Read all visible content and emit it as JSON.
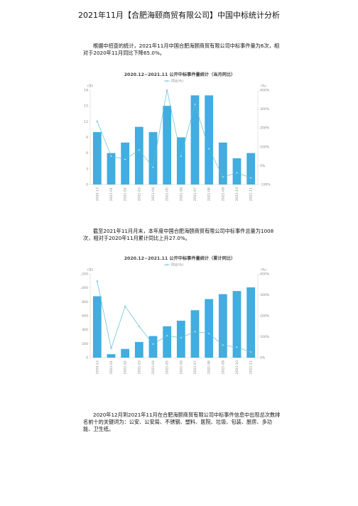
{
  "title": "2021年11月【合肥海颐商贸有限公司】中国中标统计分析",
  "paragraphs": [
    "根据中招查的统计，2021年11月中国合肥海颐商贸有限公司中标事件量为6次，相对于2020年11月同比下降65.0%。",
    "截至2021年11月月末，本年度中国合肥海颐商贸有限公司中标事件总量为1008次，相对于2020年11月累计同比上升27.0%。",
    "2020年12月到2021年11月在合肥海颐商贸有限公司中标事件信息中出现总次数排名前十的关键词为：公安、公安局、不锈钢、塑料、医院、垃圾、包装、厨房、多功能、卫生纸。"
  ],
  "chart_data": [
    {
      "type": "bar",
      "title": "2020.12~2021.11 公开中标事件量统计（当月同比）",
      "y_label": "(次)",
      "y2_label": "(%)",
      "categories": [
        "2020-12",
        "2021-01",
        "2021-02",
        "2021-03",
        "2021-04",
        "2021-05",
        "2021-06",
        "2021-07",
        "2021-08",
        "2021-09",
        "2021-10",
        "2021-11"
      ],
      "series": [
        {
          "color": "#41ade0",
          "values": [
            10,
            6,
            8,
            11,
            10,
            15,
            9,
            17,
            17,
            8,
            5,
            6
          ]
        },
        {
          "name": "同比(%)",
          "type": "line",
          "axis": "y2",
          "color": "#5bbcd6",
          "values": [
            235,
            50,
            33,
            83,
            -9,
            400,
            50,
            325,
            89,
            -60,
            -38,
            -65
          ]
        }
      ],
      "ylim": [
        0,
        18
      ],
      "yticks": [
        0,
        3,
        6,
        9,
        12,
        15,
        18
      ],
      "y2lim": [
        -100,
        400
      ],
      "y2ticks": [
        {
          "value": -100,
          "label": "-100%"
        },
        {
          "value": 0,
          "label": "0%"
        },
        {
          "value": 100,
          "label": "100%"
        },
        {
          "value": 200,
          "label": "200%"
        },
        {
          "value": 300,
          "label": "300%"
        },
        {
          "value": 400,
          "label": "400%"
        }
      ]
    },
    {
      "type": "bar",
      "title": "2020.12~2021.11 公开中标事件量统计（累计同比）",
      "y_label": "(次)",
      "y2_label": "(%)",
      "categories": [
        "2020-12",
        "2021-01",
        "2021-02",
        "2021-03",
        "2021-04",
        "2021-05",
        "2021-06",
        "2021-07",
        "2021-08",
        "2021-09",
        "2021-10",
        "2021-11"
      ],
      "series": [
        {
          "color": "#41ade0",
          "values": [
            880,
            50,
            125,
            225,
            310,
            450,
            530,
            680,
            840,
            910,
            955,
            1008
          ]
        },
        {
          "name": "同比(%)",
          "type": "line",
          "axis": "y2",
          "color": "#5bbcd6",
          "values": [
            365,
            45,
            245,
            150,
            65,
            105,
            95,
            125,
            115,
            60,
            50,
            27
          ]
        }
      ],
      "ylim": [
        0,
        1200
      ],
      "yticks": [
        0,
        200,
        400,
        600,
        800,
        {
          "value": 1000,
          "label": "1,000"
        },
        {
          "value": 1200,
          "label": "1,200"
        }
      ],
      "y2lim": [
        0,
        400
      ],
      "y2ticks": [
        {
          "value": 0,
          "label": "0%"
        },
        {
          "value": 100,
          "label": "100%"
        },
        {
          "value": 200,
          "label": "200%"
        },
        {
          "value": 300,
          "label": "300%"
        },
        {
          "value": 400,
          "label": "400%"
        }
      ]
    }
  ]
}
